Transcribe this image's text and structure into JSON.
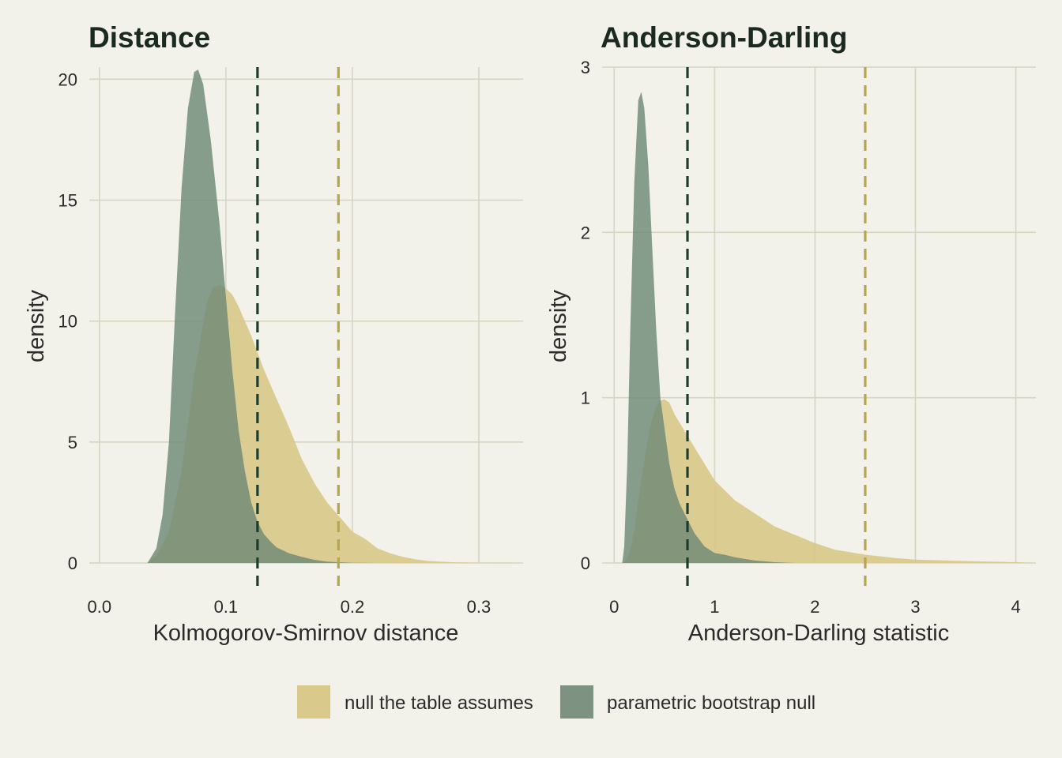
{
  "colors": {
    "background": "#f2f1ea",
    "grid": "#d5d5c4",
    "null_fill": "#d9ca8c",
    "boot_fill": "#6f8a78",
    "null_line": "#b8a44c",
    "boot_line": "#1f3d2b",
    "title": "#1a2a20"
  },
  "legend": {
    "items": [
      {
        "label": "null the table assumes",
        "color": "#d9ca8c"
      },
      {
        "label": "parametric bootstrap null",
        "color": "#7e9282"
      }
    ]
  },
  "chart_data": [
    {
      "type": "area",
      "title": "Distance",
      "xlabel": "Kolmogorov-Smirnov distance",
      "ylabel": "density",
      "xlim": [
        -0.008,
        0.335
      ],
      "ylim": [
        0,
        20.5
      ],
      "xticks": [
        0.0,
        0.1,
        0.2,
        0.3
      ],
      "xtick_labels": [
        "0.0",
        "0.1",
        "0.2",
        "0.3"
      ],
      "yticks": [
        0,
        5,
        10,
        15,
        20
      ],
      "ytick_labels": [
        "0",
        "5",
        "10",
        "15",
        "20"
      ],
      "grid": true,
      "series": [
        {
          "name": "parametric bootstrap null",
          "x": [
            0.038,
            0.045,
            0.05,
            0.055,
            0.06,
            0.065,
            0.07,
            0.075,
            0.078,
            0.082,
            0.088,
            0.095,
            0.1,
            0.105,
            0.11,
            0.115,
            0.12,
            0.125,
            0.13,
            0.135,
            0.14,
            0.15,
            0.16,
            0.17,
            0.18,
            0.19,
            0.2,
            0.22
          ],
          "y": [
            0,
            0.6,
            2.0,
            5.0,
            10.5,
            15.5,
            18.8,
            20.3,
            20.4,
            19.8,
            17.5,
            14.0,
            11.0,
            8.0,
            5.5,
            3.8,
            2.5,
            1.7,
            1.2,
            0.9,
            0.65,
            0.4,
            0.25,
            0.13,
            0.06,
            0.03,
            0.01,
            0
          ]
        },
        {
          "name": "null the table assumes",
          "x": [
            0.038,
            0.045,
            0.055,
            0.065,
            0.075,
            0.085,
            0.09,
            0.095,
            0.1,
            0.105,
            0.11,
            0.115,
            0.12,
            0.13,
            0.14,
            0.15,
            0.16,
            0.17,
            0.18,
            0.19,
            0.2,
            0.21,
            0.22,
            0.23,
            0.24,
            0.25,
            0.26,
            0.28,
            0.3,
            0.33
          ],
          "y": [
            0,
            0.3,
            1.3,
            3.8,
            7.8,
            10.8,
            11.4,
            11.5,
            11.35,
            11.1,
            10.6,
            10.0,
            9.4,
            8.0,
            6.8,
            5.6,
            4.3,
            3.3,
            2.5,
            1.9,
            1.3,
            1.0,
            0.6,
            0.4,
            0.25,
            0.15,
            0.08,
            0.03,
            0.01,
            0
          ]
        }
      ],
      "vlines": [
        {
          "name": "parametric bootstrap null",
          "x": 0.125,
          "color": "#1f3d2b"
        },
        {
          "name": "null the table assumes",
          "x": 0.189,
          "color": "#b8a44c"
        }
      ]
    },
    {
      "type": "area",
      "title": "Anderson-Darling",
      "xlabel": "Anderson-Darling statistic",
      "ylabel": "density",
      "xlim": [
        -0.12,
        4.2
      ],
      "ylim": [
        0,
        3.0
      ],
      "xticks": [
        0,
        1,
        2,
        3,
        4
      ],
      "xtick_labels": [
        "0",
        "1",
        "2",
        "3",
        "4"
      ],
      "yticks": [
        0,
        1,
        2,
        3
      ],
      "ytick_labels": [
        "0",
        "1",
        "2",
        "3"
      ],
      "grid": true,
      "series": [
        {
          "name": "parametric bootstrap null",
          "x": [
            0.08,
            0.1,
            0.13,
            0.16,
            0.2,
            0.24,
            0.27,
            0.3,
            0.34,
            0.38,
            0.42,
            0.46,
            0.5,
            0.55,
            0.6,
            0.65,
            0.7,
            0.75,
            0.8,
            0.9,
            1.0,
            1.1,
            1.2,
            1.4,
            1.6,
            1.8
          ],
          "y": [
            0,
            0.1,
            0.6,
            1.4,
            2.3,
            2.8,
            2.85,
            2.75,
            2.4,
            1.9,
            1.4,
            1.0,
            0.82,
            0.6,
            0.45,
            0.36,
            0.3,
            0.24,
            0.18,
            0.1,
            0.06,
            0.05,
            0.035,
            0.015,
            0.005,
            0
          ]
        },
        {
          "name": "null the table assumes",
          "x": [
            0.1,
            0.15,
            0.2,
            0.25,
            0.3,
            0.35,
            0.4,
            0.45,
            0.5,
            0.55,
            0.6,
            0.7,
            0.8,
            0.9,
            1.0,
            1.2,
            1.4,
            1.6,
            1.8,
            2.0,
            2.2,
            2.5,
            2.8,
            3.0,
            3.3,
            3.6,
            4.0,
            4.2
          ],
          "y": [
            0,
            0.05,
            0.2,
            0.42,
            0.62,
            0.8,
            0.92,
            0.98,
            0.99,
            0.97,
            0.9,
            0.8,
            0.7,
            0.6,
            0.5,
            0.38,
            0.3,
            0.22,
            0.17,
            0.12,
            0.08,
            0.05,
            0.03,
            0.02,
            0.015,
            0.01,
            0.005,
            0
          ]
        }
      ],
      "vlines": [
        {
          "name": "parametric bootstrap null",
          "x": 0.73,
          "color": "#1f3d2b"
        },
        {
          "name": "null the table assumes",
          "x": 2.5,
          "color": "#b8a44c"
        }
      ]
    }
  ]
}
